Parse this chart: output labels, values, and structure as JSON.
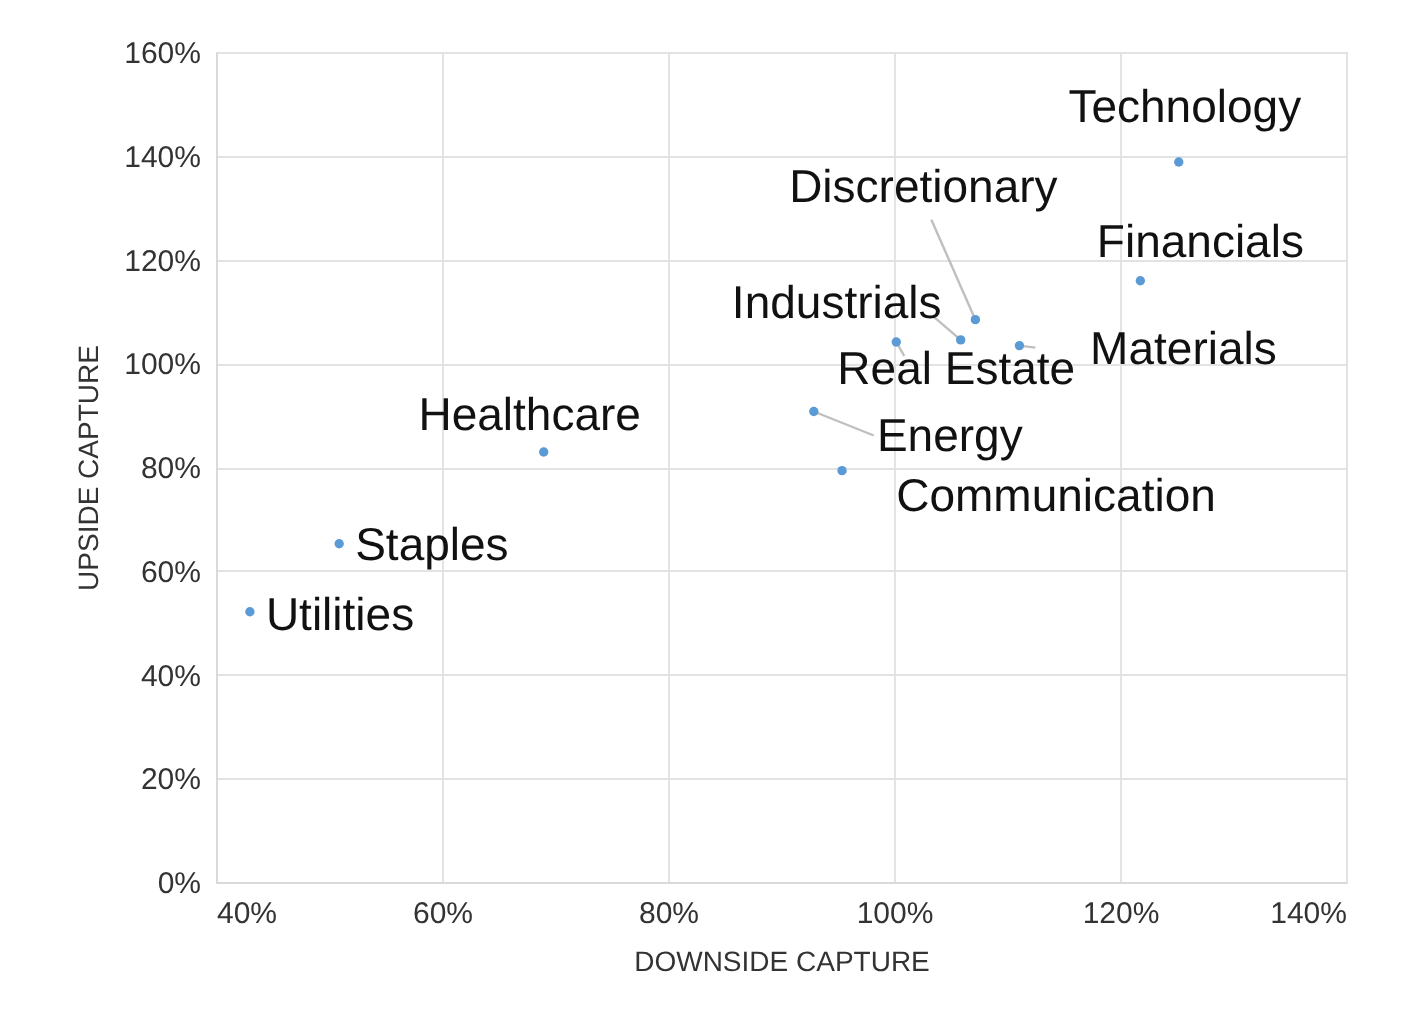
{
  "chart_data": {
    "type": "scatter",
    "xlabel": "DOWNSIDE CAPTURE",
    "ylabel": "UPSIDE CAPTURE",
    "grid": true,
    "marker": "circle",
    "xlim": [
      40,
      140
    ],
    "ylim": [
      0,
      160
    ],
    "xticks": [
      {
        "value": 40,
        "label": "40%"
      },
      {
        "value": 60,
        "label": "60%"
      },
      {
        "value": 80,
        "label": "80%"
      },
      {
        "value": 100,
        "label": "100%"
      },
      {
        "value": 120,
        "label": "120%"
      },
      {
        "value": 140,
        "label": "140%"
      }
    ],
    "yticks": [
      {
        "value": 0,
        "label": "0%"
      },
      {
        "value": 20,
        "label": "20%"
      },
      {
        "value": 40,
        "label": "40%"
      },
      {
        "value": 60,
        "label": "60%"
      },
      {
        "value": 80,
        "label": "80%"
      },
      {
        "value": 100,
        "label": "100%"
      },
      {
        "value": 120,
        "label": "120%"
      },
      {
        "value": 140,
        "label": "140%"
      },
      {
        "value": 160,
        "label": "160%"
      }
    ],
    "series": [
      {
        "name": "Technology",
        "color": "#5b9bd5",
        "x": [
          125.2
        ],
        "values": [
          138.8
        ]
      },
      {
        "name": "Discretionary",
        "color": "#5b9bd5",
        "x": [
          107.2
        ],
        "values": [
          108.4
        ]
      },
      {
        "name": "Financials",
        "color": "#5b9bd5",
        "x": [
          121.8
        ],
        "values": [
          115.9
        ]
      },
      {
        "name": "Industrials",
        "color": "#5b9bd5",
        "x": [
          105.9
        ],
        "values": [
          104.5
        ]
      },
      {
        "name": "Materials",
        "color": "#5b9bd5",
        "x": [
          111.1
        ],
        "values": [
          103.4
        ]
      },
      {
        "name": "Real Estate",
        "color": "#5b9bd5",
        "x": [
          100.2
        ],
        "values": [
          104.1
        ]
      },
      {
        "name": "Energy",
        "color": "#5b9bd5",
        "x": [
          92.9
        ],
        "values": [
          90.7
        ]
      },
      {
        "name": "Communication",
        "color": "#5b9bd5",
        "x": [
          95.4
        ],
        "values": [
          79.3
        ]
      },
      {
        "name": "Healthcare",
        "color": "#5b9bd5",
        "x": [
          69.0
        ],
        "values": [
          82.9
        ]
      },
      {
        "name": "Staples",
        "color": "#5b9bd5",
        "x": [
          50.9
        ],
        "values": [
          65.2
        ]
      },
      {
        "name": "Utilities",
        "color": "#5b9bd5",
        "x": [
          43.0
        ],
        "values": [
          52.1
        ]
      }
    ]
  }
}
